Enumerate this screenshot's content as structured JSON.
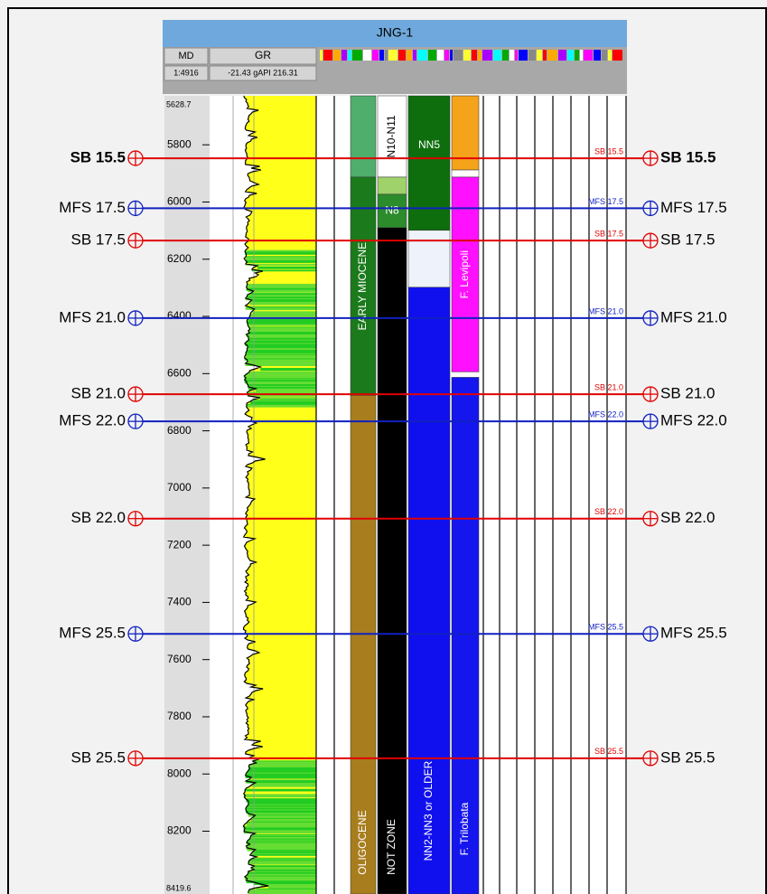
{
  "title": "JNG-1",
  "header": {
    "md": "MD",
    "gr": "GR",
    "scale": "1:4916",
    "gr_range": "-21.43 gAPI 216.31"
  },
  "depth_axis": {
    "top": 5628.7,
    "base": 8419.6,
    "ticks": [
      5800,
      6000,
      6200,
      6400,
      6600,
      6800,
      7000,
      7200,
      7400,
      7600,
      7800,
      8000,
      8200
    ]
  },
  "markers": [
    {
      "name": "SB 15.5",
      "depth": 5847,
      "color": "#e00000",
      "bold": true
    },
    {
      "name": "MFS 17.5",
      "depth": 6022,
      "color": "#1020c0"
    },
    {
      "name": "SB 17.5",
      "depth": 6135,
      "color": "#e00000"
    },
    {
      "name": "MFS 21.0",
      "depth": 6406,
      "color": "#1020c0"
    },
    {
      "name": "SB 21.0",
      "depth": 6672,
      "color": "#e00000"
    },
    {
      "name": "MFS 22.0",
      "depth": 6767,
      "color": "#1020c0"
    },
    {
      "name": "SB 22.0",
      "depth": 7107,
      "color": "#e00000"
    },
    {
      "name": "MFS 25.5",
      "depth": 7510,
      "color": "#1020c0"
    },
    {
      "name": "SB 25.5",
      "depth": 7945,
      "color": "#e00000"
    }
  ],
  "zone_tracks": [
    [
      {
        "top": 5628.7,
        "base": 5913,
        "color": "#4fae6c"
      },
      {
        "top": 5913,
        "base": 6676,
        "color": "#1b7a1b",
        "label": "EARLY MIOCENE"
      },
      {
        "top": 6676,
        "base": 8419.6,
        "color": "#a87d1e",
        "label": "OLIGOCENE"
      }
    ],
    [
      {
        "top": 5628.7,
        "base": 5913,
        "color": "#ffffff",
        "label": "N10-N11"
      },
      {
        "top": 5913,
        "base": 5973,
        "color": "#9fd26a"
      },
      {
        "top": 5973,
        "base": 6090,
        "color": "#2c8c2c",
        "label": "N8"
      },
      {
        "top": 6090,
        "base": 8419.6,
        "color": "#000000",
        "label": "NOT ZONE"
      }
    ],
    [
      {
        "top": 5628.7,
        "base": 6099,
        "color": "#0e6e0e",
        "label": "NN5"
      },
      {
        "top": 6099,
        "base": 6298,
        "color": "#eef2fa"
      },
      {
        "top": 6298,
        "base": 8419.6,
        "color": "#1010ee",
        "label": "NN2-NN3 or OLDER"
      }
    ],
    [
      {
        "top": 5628.7,
        "base": 5888,
        "color": "#f5a31a"
      },
      {
        "top": 5888,
        "base": 5913,
        "color": "#ffffff"
      },
      {
        "top": 5913,
        "base": 6594,
        "color": "#ff10ff",
        "label": "F. Levipoli"
      },
      {
        "top": 6613,
        "base": 8419.6,
        "color": "#1515ee",
        "label": "F. Trilobata"
      }
    ]
  ]
}
